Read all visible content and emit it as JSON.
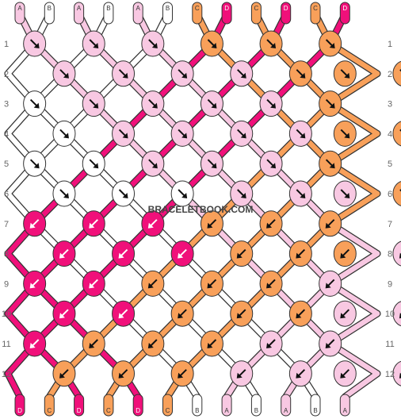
{
  "watermark": "BRACELETBOOK.COM",
  "colors": {
    "A": "#f8c8e2",
    "B": "#ffffff",
    "C": "#f8a05a",
    "D": "#f0107a"
  },
  "strings_top": [
    "A",
    "B",
    "A",
    "B",
    "A",
    "B",
    "C",
    "D",
    "C",
    "D",
    "C",
    "D"
  ],
  "strings_bottom": [
    "D",
    "C",
    "D",
    "C",
    "D",
    "C",
    "B",
    "A",
    "B",
    "A",
    "B",
    "A"
  ],
  "row_numbers": [
    "1",
    "2",
    "3",
    "4",
    "5",
    "6",
    "7",
    "8",
    "9",
    "10",
    "11",
    "12"
  ],
  "knots": [
    [
      "A",
      "A",
      "A",
      "C",
      "C",
      "C"
    ],
    [
      "A",
      "A",
      "A",
      "A",
      "C",
      "C",
      "C"
    ],
    [
      "B",
      "A",
      "A",
      "A",
      "A",
      "C"
    ],
    [
      "B",
      "A",
      "A",
      "A",
      "A",
      "C",
      "C"
    ],
    [
      "B",
      "B",
      "A",
      "A",
      "A",
      "C"
    ],
    [
      "B",
      "B",
      "B",
      "A",
      "A",
      "A",
      "C"
    ],
    [
      "D",
      "D",
      "D",
      "C",
      "C",
      "C"
    ],
    [
      "D",
      "D",
      "D",
      "C",
      "C",
      "C",
      "A"
    ],
    [
      "D",
      "D",
      "C",
      "C",
      "C",
      "A"
    ],
    [
      "D",
      "D",
      "C",
      "C",
      "C",
      "A",
      "A"
    ],
    [
      "D",
      "C",
      "C",
      "C",
      "A",
      "A"
    ],
    [
      "C",
      "C",
      "C",
      "A",
      "A",
      "A",
      "A"
    ]
  ],
  "directions": [
    [
      "R",
      "R",
      "R",
      "R",
      "R",
      "R"
    ],
    [
      "R",
      "R",
      "R",
      "R",
      "R",
      "R",
      "R"
    ],
    [
      "R",
      "R",
      "R",
      "R",
      "R",
      "R"
    ],
    [
      "R",
      "R",
      "R",
      "R",
      "R",
      "R",
      "R"
    ],
    [
      "R",
      "R",
      "R",
      "R",
      "R",
      "R"
    ],
    [
      "R",
      "R",
      "R",
      "R",
      "R",
      "R",
      "R"
    ],
    [
      "L",
      "L",
      "L",
      "L",
      "L",
      "L"
    ],
    [
      "L",
      "L",
      "L",
      "L",
      "L",
      "L",
      "L"
    ],
    [
      "L",
      "L",
      "L",
      "L",
      "L",
      "L"
    ],
    [
      "L",
      "L",
      "L",
      "L",
      "L",
      "L",
      "L"
    ],
    [
      "L",
      "L",
      "L",
      "L",
      "L",
      "L"
    ],
    [
      "L",
      "L",
      "L",
      "L",
      "L",
      "L",
      "L"
    ]
  ]
}
